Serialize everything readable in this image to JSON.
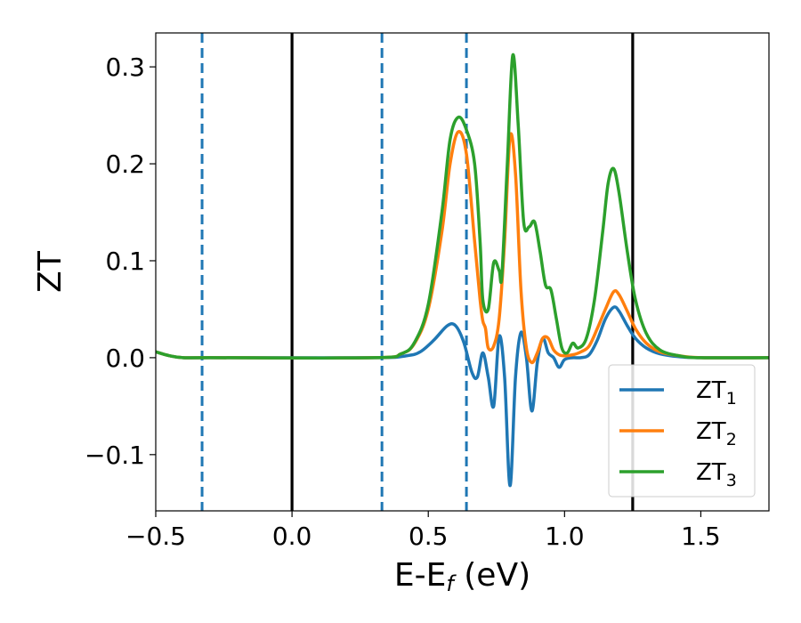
{
  "chart_data": {
    "type": "line",
    "xlabel": "E-E",
    "xlabel_sub": "f",
    "xlabel_unit": " (eV)",
    "ylabel": "ZT",
    "xlim": [
      -0.5,
      1.75
    ],
    "ylim": [
      -0.158,
      0.335
    ],
    "x_ticks": [
      -0.5,
      0.0,
      0.5,
      1.0,
      1.5
    ],
    "x_tick_labels": [
      "−0.5",
      "0.0",
      "0.5",
      "1.0",
      "1.5"
    ],
    "y_ticks": [
      -0.1,
      0.0,
      0.1,
      0.2,
      0.3
    ],
    "y_tick_labels": [
      "−0.1",
      "0.0",
      "0.1",
      "0.2",
      "0.3"
    ],
    "grid": false,
    "legend_position": "lower-right",
    "vlines": [
      {
        "x": -0.33,
        "style": "dashed",
        "color": "#1f77b4"
      },
      {
        "x": 0.0,
        "style": "solid",
        "color": "#000000"
      },
      {
        "x": 0.33,
        "style": "dashed",
        "color": "#1f77b4"
      },
      {
        "x": 0.64,
        "style": "dashed",
        "color": "#1f77b4"
      },
      {
        "x": 1.25,
        "style": "solid",
        "color": "#000000"
      }
    ],
    "series": [
      {
        "name": "ZT",
        "name_sub": "1",
        "color": "#1f77b4",
        "x": [
          -0.5,
          -0.45,
          -0.4,
          -0.3,
          0.3,
          0.42,
          0.47,
          0.52,
          0.57,
          0.6,
          0.63,
          0.66,
          0.68,
          0.7,
          0.72,
          0.74,
          0.76,
          0.78,
          0.8,
          0.82,
          0.84,
          0.86,
          0.88,
          0.9,
          0.92,
          0.94,
          0.96,
          0.98,
          1.0,
          1.03,
          1.06,
          1.09,
          1.12,
          1.15,
          1.18,
          1.2,
          1.23,
          1.26,
          1.3,
          1.35,
          1.42,
          1.5,
          1.75
        ],
        "y": [
          0.006,
          0.002,
          0.0,
          0.0,
          0.0,
          0.002,
          0.006,
          0.018,
          0.033,
          0.033,
          0.016,
          -0.015,
          -0.02,
          0.005,
          -0.02,
          -0.05,
          0.022,
          -0.02,
          -0.132,
          -0.02,
          0.026,
          0.0,
          -0.055,
          -0.005,
          0.02,
          0.005,
          0.0,
          -0.01,
          -0.002,
          0.0,
          0.0,
          0.003,
          0.018,
          0.04,
          0.052,
          0.048,
          0.033,
          0.02,
          0.01,
          0.004,
          0.001,
          0.0,
          0.0
        ]
      },
      {
        "name": "ZT",
        "name_sub": "2",
        "color": "#ff7f0e",
        "x": [
          -0.5,
          -0.45,
          -0.4,
          -0.3,
          0.3,
          0.4,
          0.45,
          0.5,
          0.55,
          0.58,
          0.61,
          0.64,
          0.67,
          0.69,
          0.7,
          0.71,
          0.72,
          0.74,
          0.76,
          0.78,
          0.8,
          0.82,
          0.84,
          0.86,
          0.88,
          0.9,
          0.92,
          0.94,
          0.96,
          0.98,
          1.0,
          1.03,
          1.06,
          1.09,
          1.12,
          1.15,
          1.18,
          1.2,
          1.23,
          1.26,
          1.3,
          1.35,
          1.42,
          1.5,
          1.75
        ],
        "y": [
          0.006,
          0.002,
          0.0,
          0.0,
          0.0,
          0.004,
          0.015,
          0.05,
          0.13,
          0.2,
          0.233,
          0.21,
          0.12,
          0.06,
          0.038,
          0.03,
          0.01,
          0.012,
          0.04,
          0.12,
          0.228,
          0.19,
          0.07,
          0.01,
          -0.005,
          0.005,
          0.02,
          0.02,
          0.008,
          0.003,
          0.002,
          0.003,
          0.006,
          0.012,
          0.03,
          0.05,
          0.068,
          0.065,
          0.048,
          0.03,
          0.015,
          0.006,
          0.002,
          0.0,
          0.0
        ]
      },
      {
        "name": "ZT",
        "name_sub": "3",
        "color": "#2ca02c",
        "x": [
          -0.5,
          -0.45,
          -0.4,
          -0.3,
          0.3,
          0.4,
          0.45,
          0.5,
          0.55,
          0.58,
          0.61,
          0.64,
          0.67,
          0.69,
          0.7,
          0.72,
          0.74,
          0.76,
          0.77,
          0.79,
          0.81,
          0.83,
          0.85,
          0.87,
          0.89,
          0.91,
          0.93,
          0.95,
          0.97,
          0.99,
          1.01,
          1.03,
          1.05,
          1.08,
          1.11,
          1.14,
          1.16,
          1.18,
          1.2,
          1.23,
          1.26,
          1.3,
          1.35,
          1.42,
          1.5,
          1.75
        ],
        "y": [
          0.006,
          0.002,
          0.0,
          0.0,
          0.0,
          0.004,
          0.016,
          0.055,
          0.15,
          0.225,
          0.248,
          0.235,
          0.2,
          0.12,
          0.06,
          0.05,
          0.098,
          0.09,
          0.085,
          0.2,
          0.312,
          0.24,
          0.14,
          0.135,
          0.14,
          0.11,
          0.075,
          0.07,
          0.04,
          0.01,
          0.005,
          0.015,
          0.01,
          0.02,
          0.06,
          0.13,
          0.18,
          0.195,
          0.17,
          0.11,
          0.06,
          0.025,
          0.008,
          0.002,
          0.0,
          0.0
        ]
      }
    ]
  }
}
